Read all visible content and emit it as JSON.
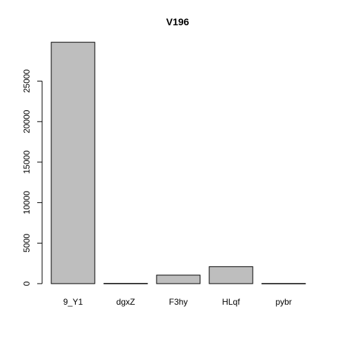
{
  "chart_data": {
    "type": "bar",
    "title": "V196",
    "xlabel": "",
    "ylabel": "",
    "categories": [
      "9_Y1",
      "dgxZ",
      "F3hy",
      "HLqf",
      "pybr"
    ],
    "values": [
      29800,
      30,
      1050,
      2100,
      20
    ],
    "ylim": [
      0,
      30000
    ],
    "yticks": [
      0,
      5000,
      10000,
      15000,
      20000,
      25000
    ],
    "ytick_labels": [
      "0",
      "5000",
      "10000",
      "15000",
      "20000",
      "25000"
    ],
    "bar_color": "#bebebe",
    "grid": false,
    "legend": "none"
  }
}
